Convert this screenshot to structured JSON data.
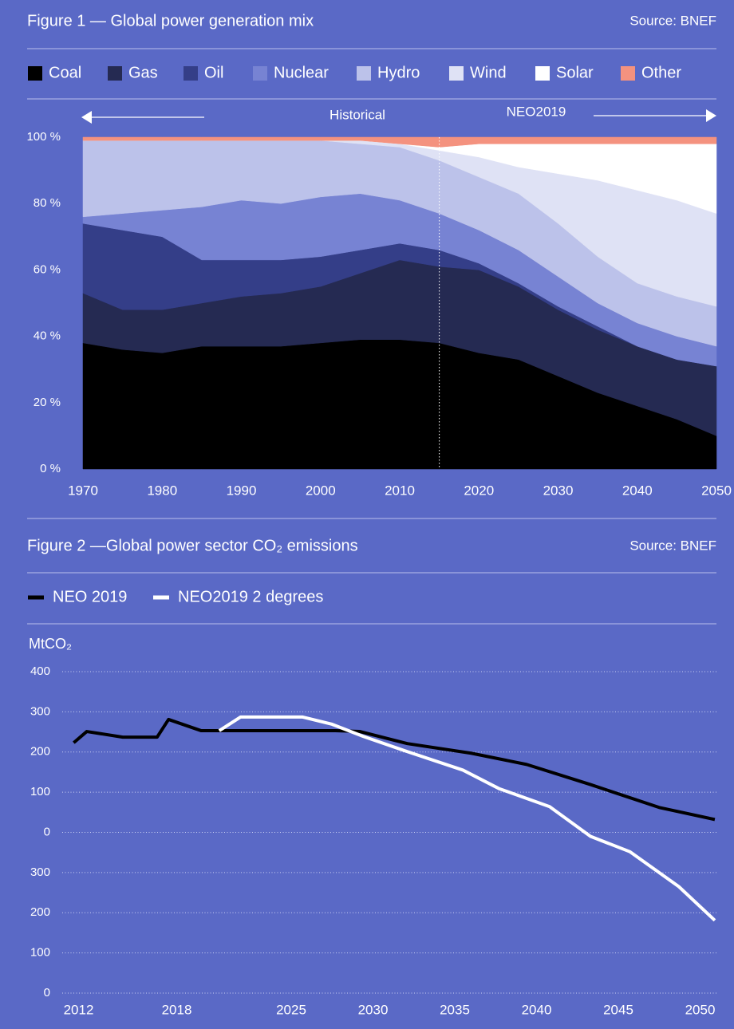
{
  "chart_data": [
    {
      "type": "stacked-area",
      "title": "Figure 1 — Global power generation mix",
      "source": "Source: BNEF",
      "annotations": [
        "Historical",
        "NEO2019"
      ],
      "forecast_start": 2015,
      "x": [
        1970,
        1975,
        1980,
        1985,
        1990,
        1995,
        2000,
        2005,
        2010,
        2015,
        2020,
        2025,
        2030,
        2035,
        2040,
        2045,
        2050
      ],
      "xlim": [
        1970,
        2050
      ],
      "xticks": [
        1970,
        1980,
        1990,
        2000,
        2010,
        2020,
        2030,
        2040,
        2050
      ],
      "ylim": [
        0,
        100
      ],
      "yticks": [
        {
          "value": 0,
          "label": "0 %"
        },
        {
          "value": 20,
          "label": "20 %"
        },
        {
          "value": 40,
          "label": "40 %"
        },
        {
          "value": 60,
          "label": "60 %"
        },
        {
          "value": 80,
          "label": "80 %"
        },
        {
          "value": 100,
          "label": "100 %"
        }
      ],
      "grid": false,
      "series": [
        {
          "name": "Coal",
          "color": "#000000",
          "values": [
            38,
            36,
            35,
            37,
            37,
            37,
            38,
            39,
            39,
            38,
            35,
            33,
            28,
            23,
            19,
            15,
            10
          ]
        },
        {
          "name": "Gas",
          "color": "#252a52",
          "values": [
            15,
            12,
            13,
            13,
            15,
            16,
            17,
            20,
            24,
            23,
            25,
            22,
            20,
            19,
            18,
            18,
            21
          ]
        },
        {
          "name": "Oil",
          "color": "#343e88",
          "values": [
            21,
            24,
            22,
            13,
            11,
            10,
            9,
            7,
            5,
            5,
            2,
            1,
            1,
            1,
            0,
            0,
            0
          ]
        },
        {
          "name": "Nuclear",
          "color": "#7783d3",
          "values": [
            2,
            5,
            8,
            16,
            18,
            17,
            18,
            17,
            13,
            11,
            10,
            10,
            9,
            7,
            7,
            7,
            6
          ]
        },
        {
          "name": "Hydro",
          "color": "#bcc2ea",
          "values": [
            23,
            22,
            21,
            20,
            18,
            19,
            17,
            15,
            16,
            16,
            16,
            17,
            16,
            14,
            12,
            12,
            12
          ]
        },
        {
          "name": "Wind",
          "color": "#dfe2f5",
          "values": [
            0,
            0,
            0,
            0,
            0,
            0,
            0,
            1,
            1,
            3,
            6,
            8,
            15,
            23,
            28,
            29,
            28
          ]
        },
        {
          "name": "Solar",
          "color": "#ffffff",
          "values": [
            0,
            0,
            0,
            0,
            0,
            0,
            0,
            0,
            0,
            1,
            4,
            7,
            9,
            11,
            14,
            17,
            21
          ]
        },
        {
          "name": "Other",
          "color": "#f4927f",
          "values": [
            1,
            1,
            1,
            1,
            1,
            1,
            1,
            1,
            2,
            3,
            2,
            2,
            2,
            2,
            2,
            2,
            2
          ]
        }
      ]
    },
    {
      "type": "line",
      "title": "Figure 2 —Global power sector CO₂ emissions",
      "source": "Source: BNEF",
      "y_label": "MtCO₂",
      "xlim": [
        2011,
        2051
      ],
      "xticks": [
        2012,
        2018,
        2025,
        2030,
        2035,
        2040,
        2045,
        2050
      ],
      "ylim": [
        -400,
        400
      ],
      "yticks": [
        {
          "value": -400,
          "label": "0"
        },
        {
          "value": -300,
          "label": "100"
        },
        {
          "value": -200,
          "label": "200"
        },
        {
          "value": -100,
          "label": "300"
        },
        0,
        100,
        200,
        300,
        400
      ],
      "grid": true,
      "series": [
        {
          "name": "NEO 2019",
          "color": "#000000",
          "x": [
            2011.7,
            2012.5,
            2014.7,
            2016.8,
            2017.5,
            2019.5,
            2020.6,
            2027.7,
            2029.2,
            2032.1,
            2036,
            2039.4,
            2043.3,
            2047.5,
            2050.9
          ],
          "values": [
            223,
            251,
            237,
            237,
            281,
            253,
            253,
            253,
            251,
            221,
            197,
            169,
            119,
            62,
            32
          ]
        },
        {
          "name": "NEO2019 2 degrees",
          "color": "#ffffff",
          "x": [
            2020.6,
            2021.9,
            2025.7,
            2027.5,
            2029.4,
            2032.1,
            2035.5,
            2037.7,
            2040.8,
            2043.3,
            2045.7,
            2048.7,
            2050.9
          ],
          "values": [
            253,
            287,
            287,
            269,
            239,
            201,
            155,
            109,
            64,
            -10,
            -48,
            -135,
            -219
          ]
        }
      ]
    }
  ]
}
